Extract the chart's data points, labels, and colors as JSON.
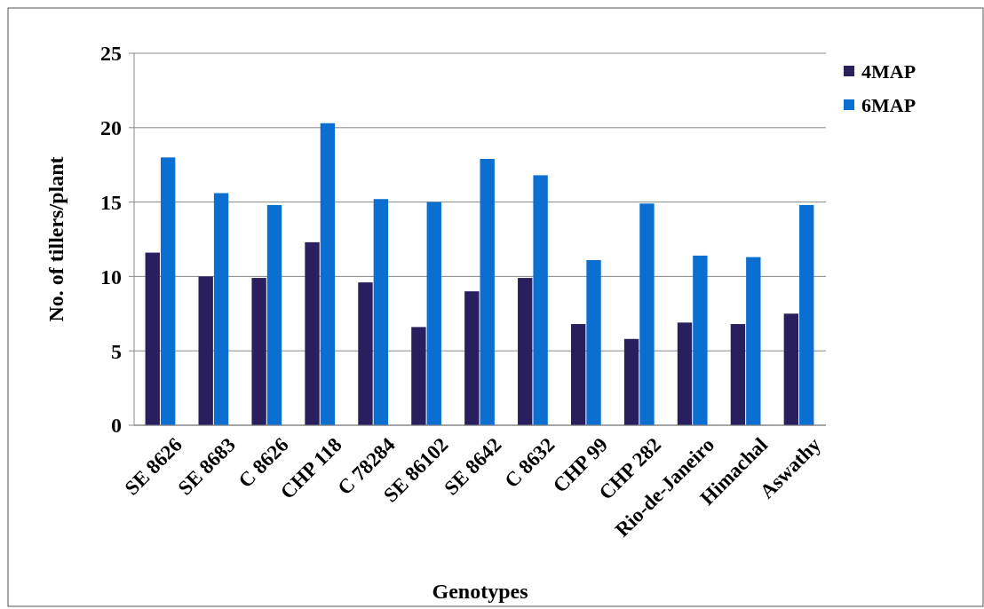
{
  "chart_data": {
    "type": "bar",
    "xlabel": "Genotypes",
    "ylabel": "No. of tillers/plant",
    "categories": [
      "SE 8626",
      "SE 8683",
      "C 8626",
      "CHP 118",
      "C 78284",
      "SE 86102",
      "SE 8642",
      "C 8632",
      "CHP 99",
      "CHP 282",
      "Rio-de-Janeiro",
      "Himachal",
      "Aswathy"
    ],
    "series": [
      {
        "name": "4MAP",
        "color": "#2a1f5e",
        "values": [
          11.6,
          10.0,
          9.9,
          12.3,
          9.6,
          6.6,
          9.0,
          9.9,
          6.8,
          5.8,
          6.9,
          6.8,
          7.5
        ]
      },
      {
        "name": "6MAP",
        "color": "#0a6fd0",
        "values": [
          18.0,
          15.6,
          14.8,
          20.3,
          15.2,
          15.0,
          17.9,
          16.8,
          11.1,
          14.9,
          11.4,
          11.3,
          14.8
        ]
      }
    ],
    "ylim": [
      0,
      25
    ],
    "yticks": [
      0,
      5,
      10,
      15,
      20,
      25
    ],
    "grid": "y",
    "legend": "top right"
  }
}
